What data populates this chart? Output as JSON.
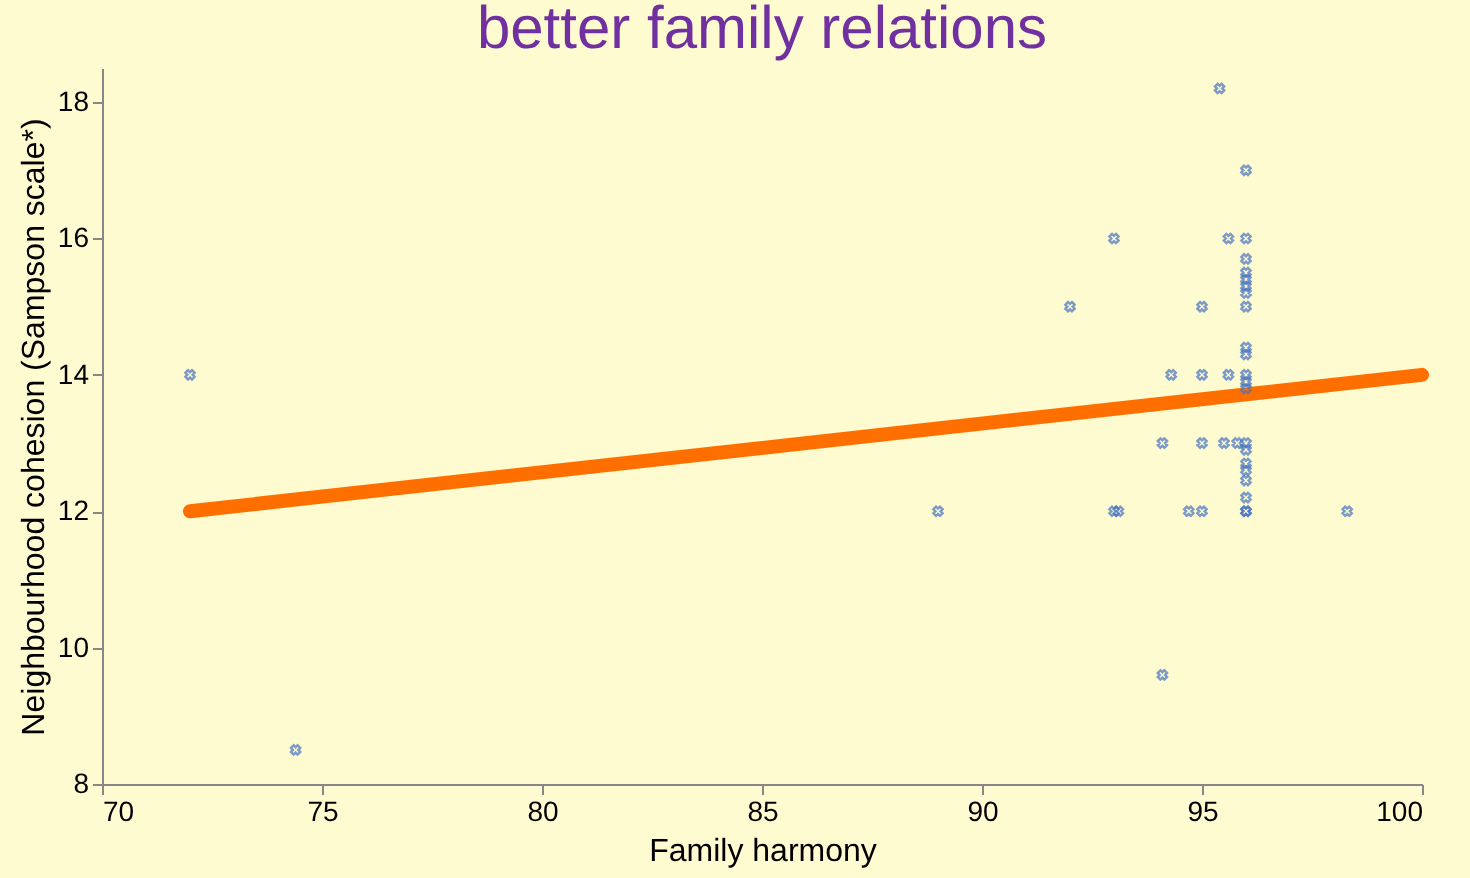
{
  "chart_data": {
    "type": "scatter",
    "title": "better family relations",
    "xlabel": "Family harmony",
    "ylabel": "Neighbourhood cohesion (Sampson scale*)",
    "xlim": [
      70,
      100
    ],
    "xticks": [
      70,
      75,
      80,
      85,
      90,
      95,
      100
    ],
    "ylim": [
      8,
      18.5
    ],
    "yticks": [
      8,
      10,
      12,
      14,
      16,
      18
    ],
    "grid": false,
    "series": [
      {
        "color": "#4472c4",
        "marker": "cross",
        "x": [
          72,
          74.4,
          89,
          92,
          93,
          93,
          93.1,
          94.1,
          94.1,
          94.3,
          94.7,
          95,
          95,
          95,
          95,
          95.4,
          95.5,
          95.6,
          95.6,
          95.8,
          96,
          96,
          96,
          96,
          96,
          96,
          96,
          96,
          96,
          96,
          96,
          96,
          96,
          96,
          96,
          96,
          96,
          96,
          96,
          96,
          96,
          98.3
        ],
        "values": [
          14,
          8.5,
          12,
          15,
          16,
          12,
          12,
          13,
          9.6,
          14,
          12,
          15,
          14,
          13,
          12,
          18.2,
          13,
          16,
          14,
          13,
          17,
          16,
          15.7,
          15.5,
          15.4,
          15.3,
          15.2,
          15,
          14.4,
          14.3,
          14,
          13.9,
          13.8,
          13,
          12.9,
          12.7,
          12.6,
          12.45,
          12.2,
          12,
          12,
          12
        ]
      },
      {
        "type": "line",
        "marker": "none",
        "color": "#ff6f00",
        "x": [
          72,
          100
        ],
        "values": [
          12,
          14
        ]
      }
    ]
  }
}
